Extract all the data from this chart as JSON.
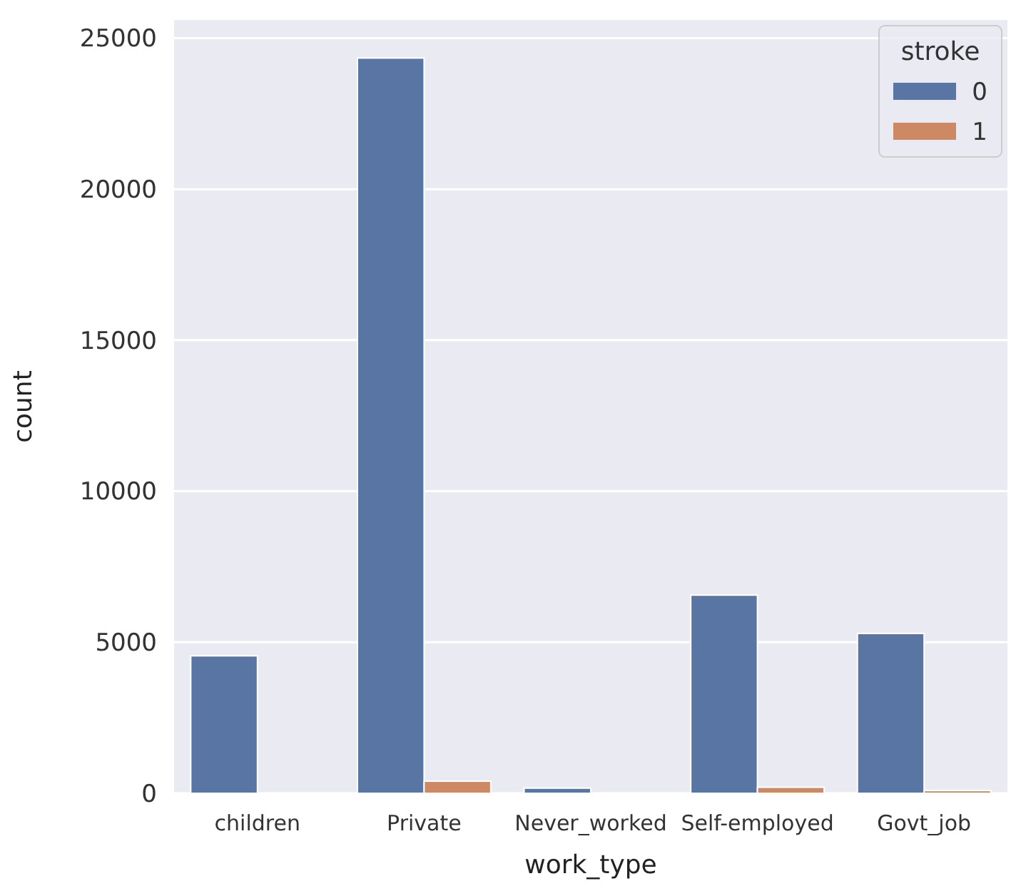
{
  "chart_data": {
    "type": "bar",
    "xlabel": "work_type",
    "ylabel": "count",
    "categories": [
      "children",
      "Private",
      "Never_worked",
      "Self-employed",
      "Govt_job"
    ],
    "series": [
      {
        "name": "0",
        "color": "#5875a4",
        "values": [
          4550,
          24340,
          170,
          6560,
          5290
        ]
      },
      {
        "name": "1",
        "color": "#cc8963",
        "values": [
          null,
          400,
          null,
          200,
          90
        ]
      }
    ],
    "ylim": [
      0,
      25600
    ],
    "yticks": [
      0,
      5000,
      10000,
      15000,
      20000,
      25000
    ],
    "grid": true,
    "legend": "top right",
    "legend_title": "stroke"
  }
}
